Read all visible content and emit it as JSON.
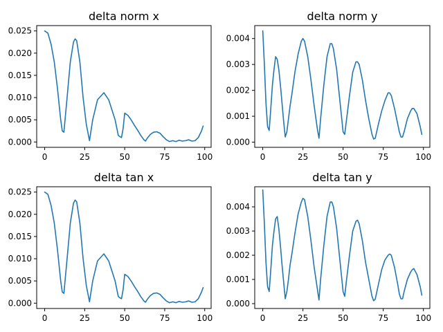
{
  "chart_data": [
    {
      "type": "line",
      "title": "delta norm x",
      "xlim": [
        -5,
        104
      ],
      "ylim": [
        -0.0012,
        0.0262
      ],
      "xticks": [
        0,
        25,
        50,
        75,
        100
      ],
      "xtick_labels": [
        "0",
        "25",
        "50",
        "75",
        "100"
      ],
      "yticks": [
        0,
        0.005,
        0.01,
        0.015,
        0.02,
        0.025
      ],
      "ytick_labels": [
        "0.000",
        "0.005",
        "0.010",
        "0.015",
        "0.020",
        "0.025"
      ],
      "color": "#1f77b4",
      "series": [
        {
          "x": [
            0,
            2,
            4,
            6,
            8,
            10,
            11,
            12,
            14,
            16,
            18,
            19,
            20,
            22,
            24,
            26,
            28,
            30,
            33,
            37,
            40,
            44,
            46,
            47,
            48,
            49,
            50,
            52,
            54,
            56,
            58,
            60,
            62,
            63,
            64,
            66,
            68,
            70,
            72,
            74,
            76,
            78,
            80,
            82,
            84,
            86,
            88,
            90,
            92,
            94,
            96,
            98,
            99
          ],
          "y": [
            0.025,
            0.0245,
            0.022,
            0.018,
            0.012,
            0.005,
            0.0025,
            0.0022,
            0.01,
            0.018,
            0.0225,
            0.0232,
            0.0228,
            0.018,
            0.01,
            0.004,
            0.0003,
            0.005,
            0.0095,
            0.0111,
            0.0095,
            0.005,
            0.0015,
            0.0012,
            0.001,
            0.003,
            0.0065,
            0.006,
            0.005,
            0.0038,
            0.0027,
            0.0015,
            0.0005,
            0.0002,
            0.0008,
            0.0017,
            0.0022,
            0.0023,
            0.002,
            0.0012,
            0.0005,
            0.0001,
            0.0003,
            0.0001,
            0.0004,
            0.0002,
            0.0003,
            0.0005,
            0.0002,
            0.0003,
            0.001,
            0.0025,
            0.0036
          ]
        }
      ]
    },
    {
      "type": "line",
      "title": "delta norm y",
      "xlim": [
        -5,
        104
      ],
      "ylim": [
        -0.0002,
        0.0045
      ],
      "xticks": [
        0,
        25,
        50,
        75,
        100
      ],
      "xtick_labels": [
        "0",
        "25",
        "50",
        "75",
        "100"
      ],
      "yticks": [
        0,
        0.001,
        0.002,
        0.003,
        0.004
      ],
      "ytick_labels": [
        "0.000",
        "0.001",
        "0.002",
        "0.003",
        "0.004"
      ],
      "color": "#1f77b4",
      "series": [
        {
          "x": [
            0,
            1,
            2,
            3,
            4,
            5,
            6,
            7,
            8,
            9,
            10,
            11,
            12,
            13,
            14,
            15,
            16,
            17,
            18,
            20,
            22,
            24,
            25,
            26,
            28,
            30,
            32,
            34,
            35,
            36,
            38,
            40,
            42,
            43,
            44,
            46,
            48,
            50,
            51,
            52,
            54,
            56,
            58,
            59,
            60,
            62,
            64,
            66,
            68,
            69,
            70,
            72,
            74,
            76,
            78,
            79,
            80,
            82,
            84,
            85,
            86,
            87,
            88,
            90,
            92,
            93,
            94,
            96,
            98,
            99
          ],
          "y": [
            0.0043,
            0.003,
            0.0015,
            0.0006,
            0.00045,
            0.0013,
            0.0022,
            0.0028,
            0.0033,
            0.0032,
            0.0028,
            0.0022,
            0.0015,
            0.0008,
            0.0002,
            0.0004,
            0.0009,
            0.0014,
            0.0018,
            0.0027,
            0.0034,
            0.0039,
            0.004,
            0.0039,
            0.0033,
            0.0024,
            0.0014,
            0.0005,
            0.00015,
            0.0009,
            0.0022,
            0.0033,
            0.0038,
            0.0038,
            0.0036,
            0.0028,
            0.0016,
            0.0004,
            0.0003,
            0.0008,
            0.0018,
            0.0027,
            0.0031,
            0.0031,
            0.003,
            0.0024,
            0.0016,
            0.0009,
            0.0003,
            0.00012,
            0.00015,
            0.0007,
            0.0012,
            0.0016,
            0.0019,
            0.0019,
            0.0018,
            0.0013,
            0.0007,
            0.0004,
            0.0002,
            0.0002,
            0.0004,
            0.0009,
            0.0012,
            0.0013,
            0.0013,
            0.0011,
            0.0006,
            0.0003
          ]
        }
      ]
    },
    {
      "type": "line",
      "title": "delta tan x",
      "xlim": [
        -5,
        104
      ],
      "ylim": [
        -0.0012,
        0.0262
      ],
      "xticks": [
        0,
        25,
        50,
        75,
        100
      ],
      "xtick_labels": [
        "0",
        "25",
        "50",
        "75",
        "100"
      ],
      "yticks": [
        0,
        0.005,
        0.01,
        0.015,
        0.02,
        0.025
      ],
      "ytick_labels": [
        "0.000",
        "0.005",
        "0.010",
        "0.015",
        "0.020",
        "0.025"
      ],
      "color": "#1f77b4",
      "series": [
        {
          "x": [
            0,
            2,
            4,
            6,
            8,
            10,
            11,
            12,
            14,
            16,
            18,
            19,
            20,
            22,
            24,
            26,
            28,
            30,
            33,
            37,
            40,
            44,
            46,
            47,
            48,
            49,
            50,
            52,
            54,
            56,
            58,
            60,
            62,
            63,
            64,
            66,
            68,
            70,
            72,
            74,
            76,
            78,
            80,
            82,
            84,
            86,
            88,
            90,
            92,
            94,
            96,
            98,
            99
          ],
          "y": [
            0.025,
            0.0245,
            0.022,
            0.018,
            0.012,
            0.005,
            0.0025,
            0.0022,
            0.01,
            0.018,
            0.0225,
            0.0232,
            0.0228,
            0.018,
            0.01,
            0.004,
            0.0003,
            0.005,
            0.0095,
            0.0111,
            0.0095,
            0.005,
            0.0015,
            0.0012,
            0.001,
            0.003,
            0.0065,
            0.006,
            0.005,
            0.0038,
            0.0027,
            0.0015,
            0.0005,
            0.0002,
            0.0008,
            0.0017,
            0.0022,
            0.0023,
            0.002,
            0.0012,
            0.0005,
            0.0001,
            0.0003,
            0.0001,
            0.0004,
            0.0002,
            0.0003,
            0.0005,
            0.0002,
            0.0003,
            0.001,
            0.0025,
            0.0035
          ]
        }
      ]
    },
    {
      "type": "line",
      "title": "delta tan y",
      "xlim": [
        -5,
        104
      ],
      "ylim": [
        -0.0002,
        0.00483
      ],
      "xticks": [
        0,
        25,
        50,
        75,
        100
      ],
      "xtick_labels": [
        "0",
        "25",
        "50",
        "75",
        "100"
      ],
      "yticks": [
        0,
        0.001,
        0.002,
        0.003,
        0.004
      ],
      "ytick_labels": [
        "0.000",
        "0.001",
        "0.002",
        "0.003",
        "0.004"
      ],
      "color": "#1f77b4",
      "series": [
        {
          "x": [
            0,
            1,
            2,
            3,
            4,
            5,
            6,
            7,
            8,
            9,
            10,
            11,
            12,
            13,
            14,
            15,
            16,
            17,
            18,
            20,
            22,
            24,
            25,
            26,
            28,
            30,
            32,
            34,
            35,
            36,
            38,
            40,
            42,
            43,
            44,
            46,
            48,
            50,
            51,
            52,
            54,
            56,
            58,
            59,
            60,
            62,
            64,
            66,
            68,
            69,
            70,
            72,
            74,
            76,
            78,
            79,
            80,
            82,
            84,
            85,
            86,
            87,
            88,
            90,
            92,
            93,
            94,
            96,
            98,
            99
          ],
          "y": [
            0.0047,
            0.0033,
            0.0017,
            0.0007,
            0.0005,
            0.0014,
            0.0024,
            0.003,
            0.0035,
            0.0036,
            0.0031,
            0.0024,
            0.0016,
            0.0009,
            0.0002,
            0.0005,
            0.001,
            0.0016,
            0.002,
            0.0029,
            0.0037,
            0.0042,
            0.00435,
            0.0043,
            0.0036,
            0.0026,
            0.0015,
            0.0006,
            0.00015,
            0.001,
            0.0024,
            0.0036,
            0.0042,
            0.0042,
            0.004,
            0.0031,
            0.0018,
            0.0005,
            0.0003,
            0.0009,
            0.002,
            0.003,
            0.0034,
            0.00345,
            0.0033,
            0.0026,
            0.0017,
            0.001,
            0.0003,
            0.00012,
            0.00018,
            0.0008,
            0.0014,
            0.0018,
            0.002,
            0.00205,
            0.002,
            0.0015,
            0.0008,
            0.0004,
            0.0002,
            0.0002,
            0.0005,
            0.001,
            0.0013,
            0.0014,
            0.00145,
            0.0012,
            0.0007,
            0.00035
          ]
        }
      ]
    }
  ]
}
